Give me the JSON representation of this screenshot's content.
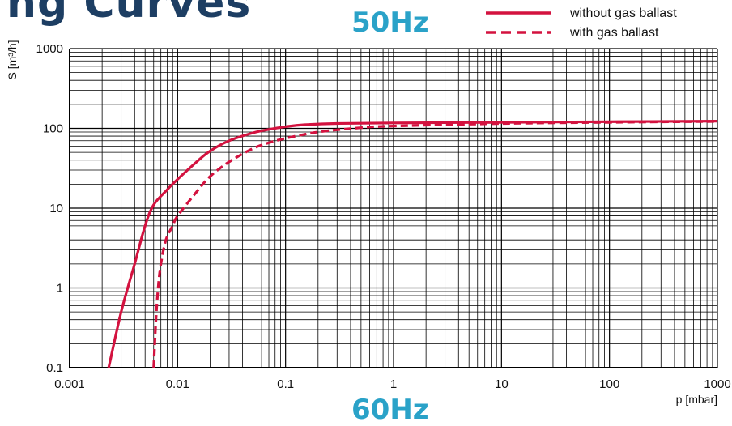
{
  "page_heading": "ng Curves",
  "frequency_label_top": "50Hz",
  "frequency_label_bottom": "60Hz",
  "chart_data": {
    "type": "line",
    "title": "",
    "xlabel": "p [mbar]",
    "ylabel": "S [m³/h]",
    "x_scale": "log",
    "y_scale": "log",
    "xlim": [
      0.001,
      1000
    ],
    "ylim": [
      0.1,
      1000
    ],
    "x_ticks": [
      "0.001",
      "0.01",
      "0.1",
      "1",
      "10",
      "100",
      "1000"
    ],
    "y_ticks": [
      "0.1",
      "1",
      "10",
      "100",
      "1000"
    ],
    "grid": true,
    "legend_position": "top-right",
    "colors": {
      "series": "#d3123f",
      "grid": "#000000",
      "axis_text": "#111111"
    },
    "series": [
      {
        "name": "without gas ballast",
        "line_style": "solid",
        "points": [
          [
            0.0023,
            0.1
          ],
          [
            0.003,
            0.5
          ],
          [
            0.004,
            2
          ],
          [
            0.005,
            6
          ],
          [
            0.006,
            11
          ],
          [
            0.008,
            17
          ],
          [
            0.01,
            23
          ],
          [
            0.015,
            38
          ],
          [
            0.02,
            52
          ],
          [
            0.03,
            70
          ],
          [
            0.05,
            88
          ],
          [
            0.07,
            97
          ],
          [
            0.1,
            105
          ],
          [
            0.15,
            111
          ],
          [
            0.3,
            115
          ],
          [
            1,
            117
          ],
          [
            10,
            119
          ],
          [
            100,
            121
          ],
          [
            1000,
            123
          ]
        ]
      },
      {
        "name": "with gas ballast",
        "line_style": "dashed",
        "points": [
          [
            0.006,
            0.1
          ],
          [
            0.0063,
            0.4
          ],
          [
            0.0066,
            1
          ],
          [
            0.007,
            2
          ],
          [
            0.0078,
            4
          ],
          [
            0.009,
            6
          ],
          [
            0.01,
            8
          ],
          [
            0.015,
            16
          ],
          [
            0.02,
            25
          ],
          [
            0.03,
            38
          ],
          [
            0.05,
            56
          ],
          [
            0.07,
            66
          ],
          [
            0.1,
            75
          ],
          [
            0.2,
            90
          ],
          [
            0.5,
            102
          ],
          [
            1,
            107
          ],
          [
            10,
            115
          ],
          [
            100,
            119
          ],
          [
            1000,
            122
          ]
        ]
      }
    ]
  }
}
